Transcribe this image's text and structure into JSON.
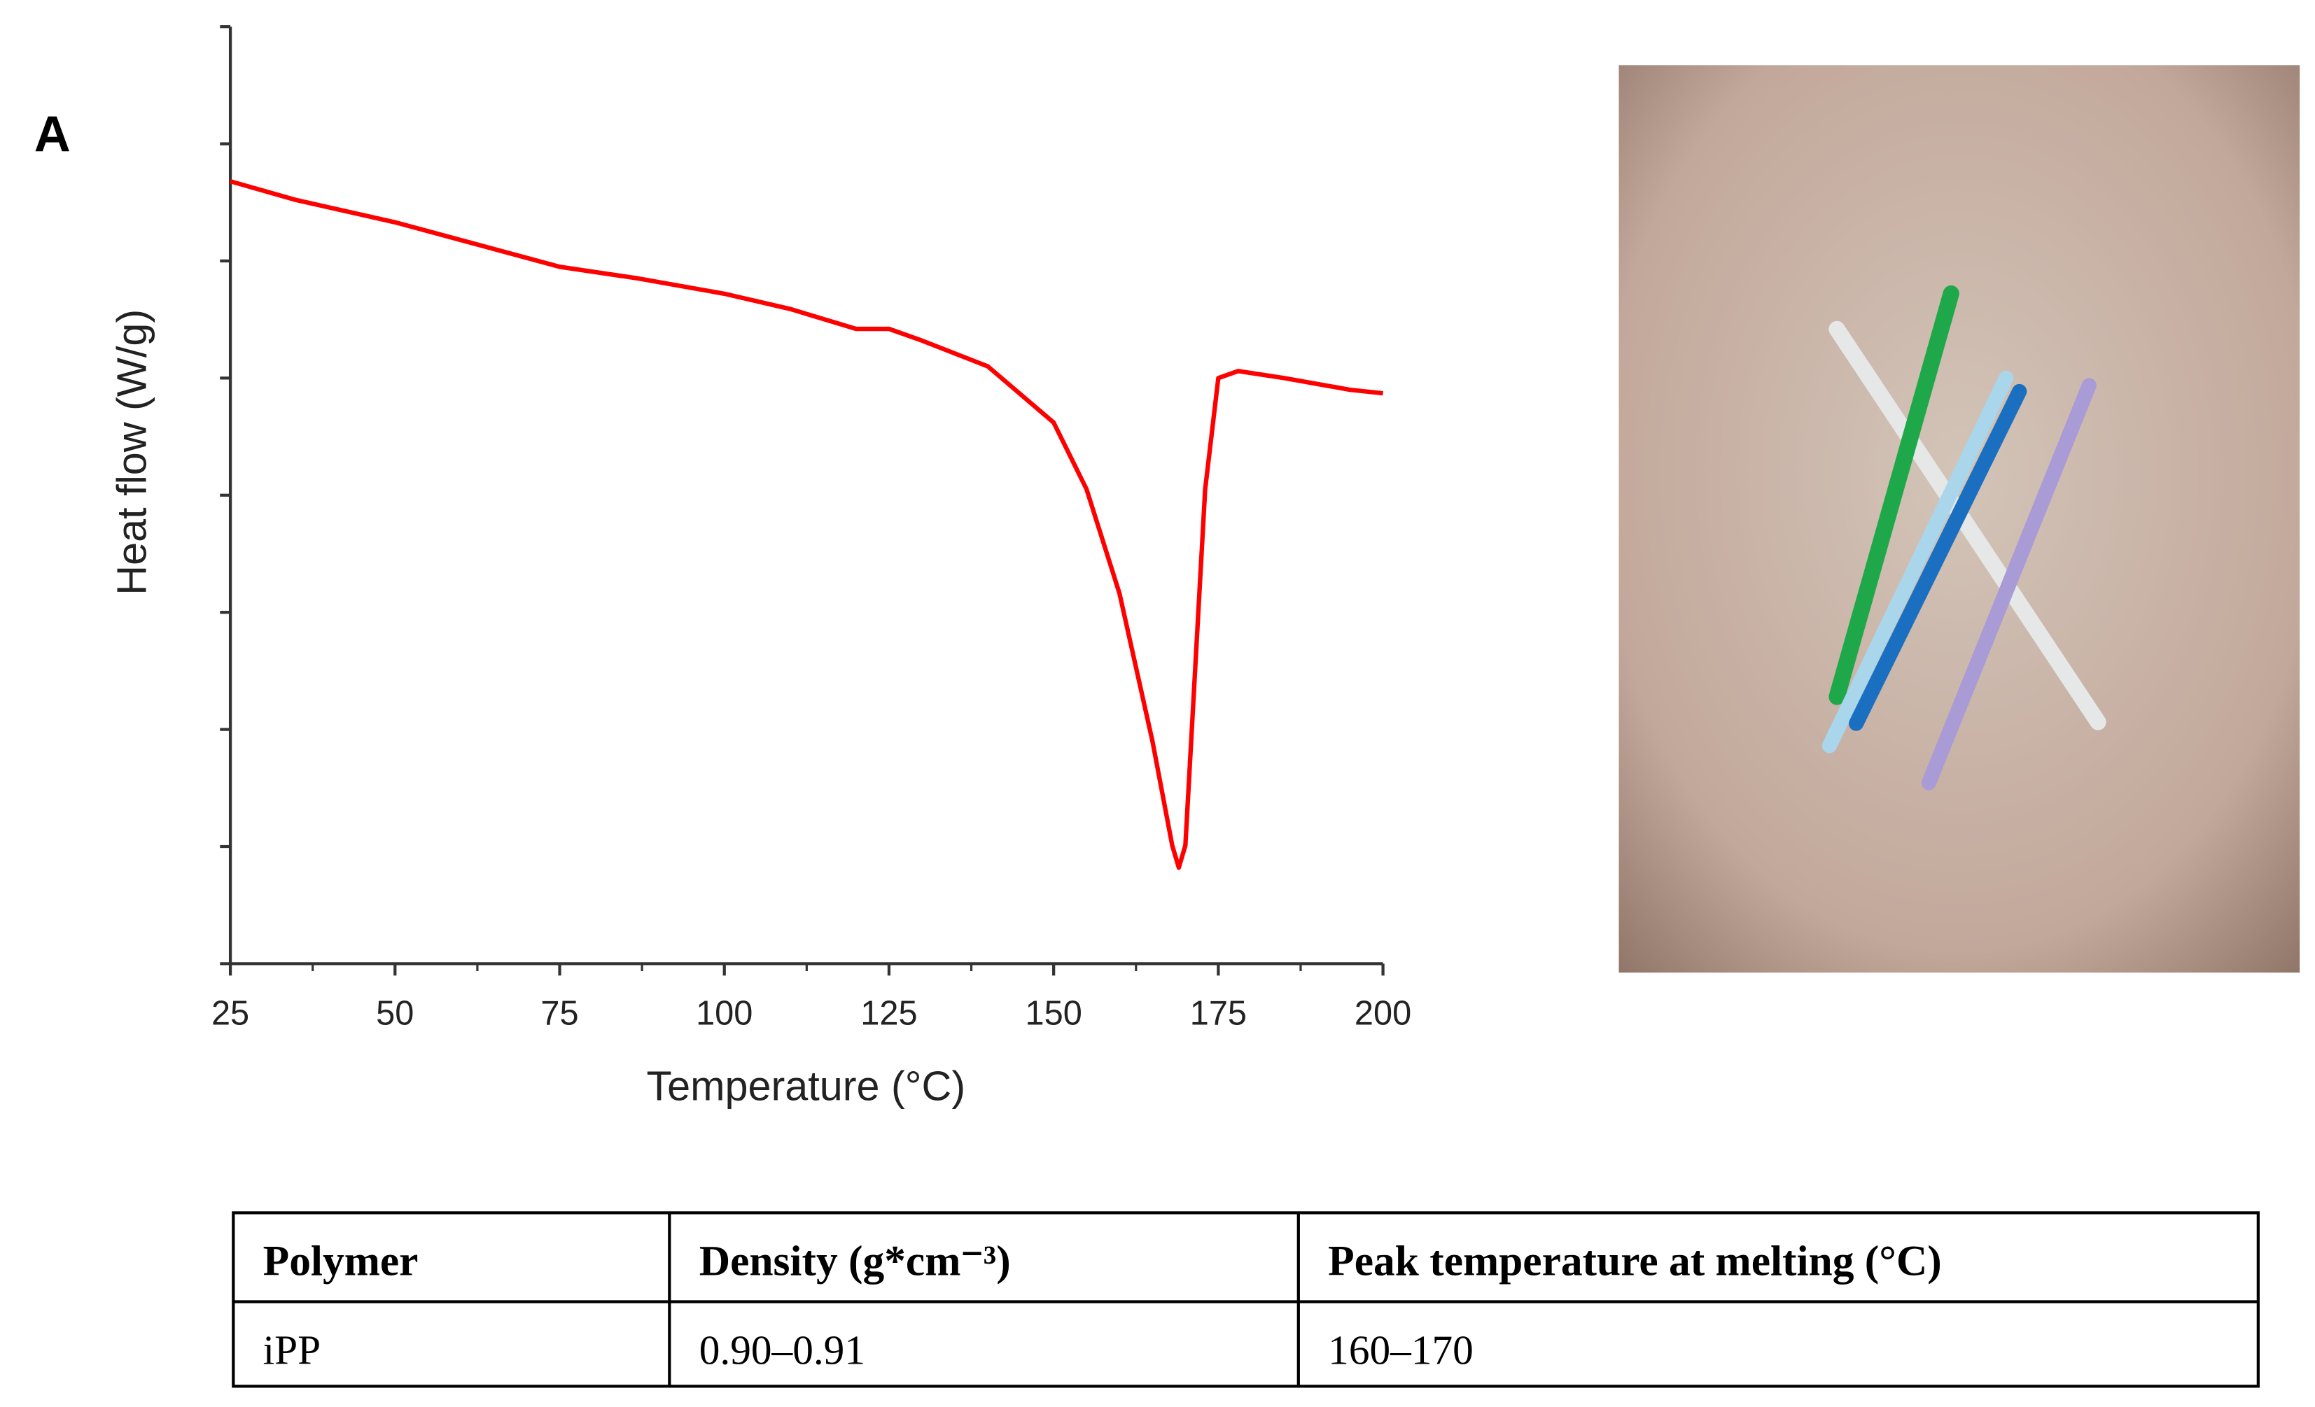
{
  "chart_data": {
    "type": "line",
    "panel_label": "A",
    "x_label": "Temperature (°C)",
    "y_label": "Heat flow (W/g)",
    "x": [
      25,
      35,
      50,
      75,
      87,
      100,
      110,
      120,
      125,
      130,
      140,
      150,
      155,
      160,
      165,
      168,
      169,
      170,
      171.5,
      173,
      175,
      178,
      185,
      195,
      200
    ],
    "values": [
      6.68,
      6.52,
      6.33,
      5.95,
      5.85,
      5.72,
      5.59,
      5.42,
      5.42,
      5.32,
      5.1,
      4.62,
      4.05,
      3.16,
      1.9,
      1.01,
      0.82,
      1.01,
      2.53,
      4.05,
      5.0,
      5.06,
      5.0,
      4.9,
      4.87
    ],
    "color": "#ff0000",
    "xlim": [
      25,
      200
    ],
    "xticks": [
      25,
      50,
      75,
      100,
      125,
      150,
      175,
      200
    ],
    "xticks_minor": [
      37.5,
      62.5,
      87.5,
      112.5,
      137.5,
      162.5,
      187.5
    ],
    "ylim": [
      0,
      8
    ],
    "yticks": [
      0,
      1,
      2,
      3,
      4,
      5,
      6,
      7,
      8
    ],
    "ytick_labels": false,
    "grid": false
  },
  "table": {
    "header": [
      "Polymer",
      "Density (g*cm⁻³)",
      "Peak temperature at melting (°C)"
    ],
    "rows": [
      [
        "iPP",
        "0.90–0.91",
        "160–170"
      ]
    ]
  }
}
